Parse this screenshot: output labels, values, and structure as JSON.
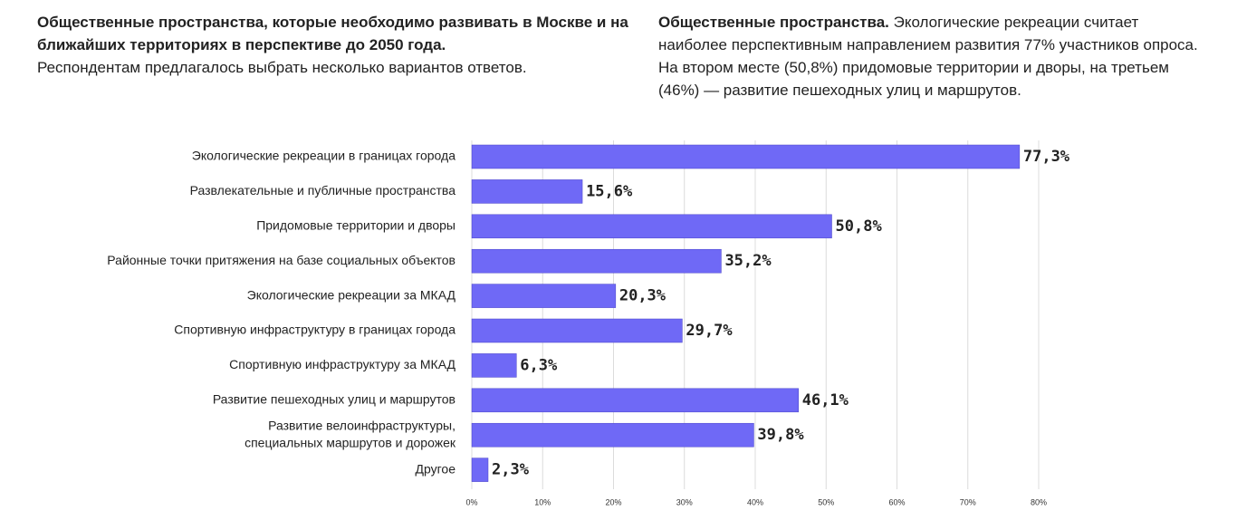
{
  "chart_data": {
    "type": "bar",
    "orientation": "horizontal",
    "title": "Общественные пространства, которые необходимо развивать в Москве и на ближайших территориях в перспективе до 2050 года.",
    "subtitle": "Респондентам предлагалось выбрать несколько вариантов ответов.",
    "annotation_lead": "Общественные пространства.",
    "annotation": "Экологические рекреации считает наиболее перспективным направлением развития 77% участников опроса. На втором месте (50,8%) придомовые территории и дворы, на третьем (46%) — развитие пешеходных улиц и маршрутов.",
    "categories": [
      "Экологические рекреации в границах города",
      "Развлекательные и публичные пространства",
      "Придомовые территории и дворы",
      "Районные точки притяжения на базе социальных объектов",
      "Экологические рекреации за МКАД",
      "Спортивную инфраструктуру в границах города",
      "Спортивную инфраструктуру за МКАД",
      "Развитие пешеходных улиц и маршрутов",
      "Развитие велоинфраструктуры,\nспециальных маршрутов и дорожек",
      "Другое"
    ],
    "values": [
      77.3,
      15.6,
      50.8,
      35.2,
      20.3,
      29.7,
      6.3,
      46.1,
      39.8,
      2.3
    ],
    "value_labels": [
      "77,3%",
      "15,6%",
      "50,8%",
      "35,2%",
      "20,3%",
      "29,7%",
      "6,3%",
      "46,1%",
      "39,8%",
      "2,3%"
    ],
    "color": "#6f69f6",
    "xlim": [
      0,
      80
    ],
    "xticks": [
      {
        "value": 0,
        "label": "0%"
      },
      {
        "value": 10,
        "label": "10%"
      },
      {
        "value": 20,
        "label": "20%"
      },
      {
        "value": 30,
        "label": "30%"
      },
      {
        "value": 40,
        "label": "40%"
      },
      {
        "value": 50,
        "label": "50%"
      },
      {
        "value": 60,
        "label": "60%"
      },
      {
        "value": 70,
        "label": "70%"
      },
      {
        "value": 80,
        "label": "80%"
      }
    ],
    "grid": true
  }
}
